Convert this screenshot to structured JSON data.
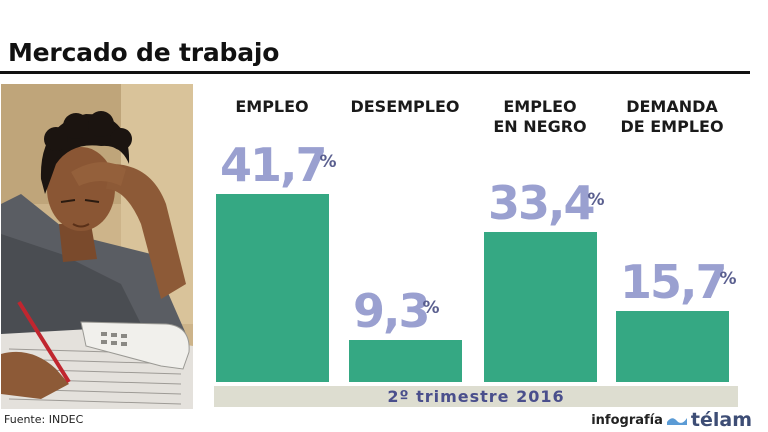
{
  "header": {
    "title": "Mercado de trabajo"
  },
  "chart_data": {
    "type": "bar",
    "categories": [
      "EMPLEO",
      "DESEMPLEO",
      "EMPLEO\nEN NEGRO",
      "DEMANDA\nDE EMPLEO"
    ],
    "values": [
      41.7,
      9.3,
      33.4,
      15.7
    ],
    "value_labels": [
      "41,7",
      "9,3",
      "33,4",
      "15,7"
    ],
    "unit": "%",
    "period": "2º trimestre 2016",
    "colors": {
      "bar": "#35a883",
      "value": "#9aa0d0",
      "band": "#ddddd0"
    }
  },
  "footer": {
    "source": "Fuente: INDEC",
    "credit_prefix": "infografía",
    "credit_brand": "télam"
  }
}
